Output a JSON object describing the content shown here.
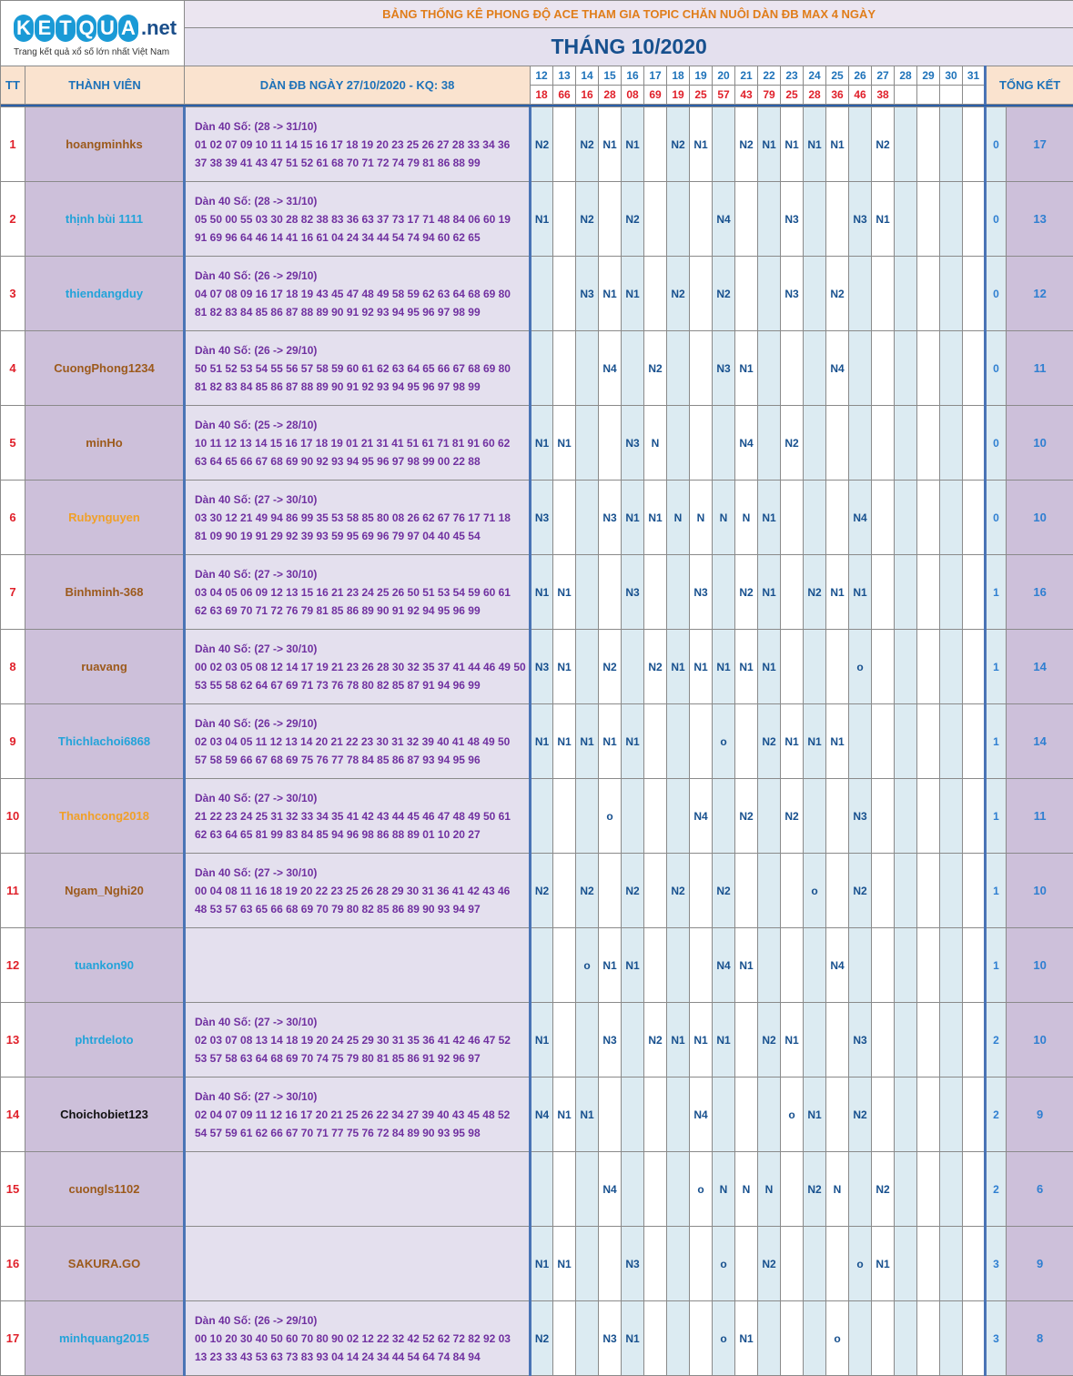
{
  "logo": {
    "letters": [
      "K",
      "E",
      "T",
      "Q",
      "U",
      "A"
    ],
    "suffix": ".net",
    "tagline": "Trang kết quả xổ số lớn nhất Việt Nam"
  },
  "banner": {
    "title": "BẢNG THỐNG KÊ PHONG ĐỘ ACE THAM GIA TOPIC CHĂN NUÔI DÀN ĐB MAX 4 NGÀY",
    "month": "THÁNG 10/2020"
  },
  "headers": {
    "tt": "TT",
    "member": "THÀNH VIÊN",
    "dan": "DÀN ĐB NGÀY 27/10/2020 - KQ: 38",
    "summary": "TỔNG KẾT"
  },
  "days": [
    "12",
    "13",
    "14",
    "15",
    "16",
    "17",
    "18",
    "19",
    "20",
    "21",
    "22",
    "23",
    "24",
    "25",
    "26",
    "27",
    "28",
    "29",
    "30",
    "31"
  ],
  "results": [
    "18",
    "66",
    "16",
    "28",
    "08",
    "69",
    "19",
    "25",
    "57",
    "43",
    "79",
    "25",
    "28",
    "36",
    "46",
    "38",
    "",
    "",
    "",
    ""
  ],
  "colors": {
    "brown": "#9c5a1c",
    "cyan": "#23a3d9",
    "orange": "#f0a028",
    "black": "#111111"
  },
  "rows": [
    {
      "tt": "1",
      "name": "hoangminhks",
      "color": "brown",
      "dan": [
        "Dàn 40 Số: (28 -> 31/10)",
        "01 02 07 09 10 11 14 15 16 17 18 19 20 23 25 26 27 28 33 34 36",
        "37 38 39 41 43 47 51 52 61 68 70 71 72 74 79 81 86 88 99"
      ],
      "cells": [
        "N2",
        "",
        "N2",
        "N1",
        "N1",
        "",
        "N2",
        "N1",
        "",
        "N2",
        "N1",
        "N1",
        "N1",
        "N1",
        "",
        "N2",
        "",
        "",
        "",
        ""
      ],
      "s0": "0",
      "s1": "17"
    },
    {
      "tt": "2",
      "name": "thịnh bùi 1111",
      "color": "cyan",
      "dan": [
        "Dàn 40 Số: (28 -> 31/10)",
        "05 50 00 55 03 30 28 82 38 83 36 63 37 73 17 71 48 84 06 60 19",
        "91 69 96 64 46 14 41 16 61 04 24 34 44 54 74 94 60 62 65"
      ],
      "cells": [
        "N1",
        "",
        "N2",
        "",
        "N2",
        "",
        "",
        "",
        "N4",
        "",
        "",
        "N3",
        "",
        "",
        "N3",
        "N1",
        "",
        "",
        "",
        ""
      ],
      "s0": "0",
      "s1": "13"
    },
    {
      "tt": "3",
      "name": "thiendangduy",
      "color": "cyan",
      "dan": [
        "Dàn 40 Số: (26 -> 29/10)",
        "04 07 08 09 16 17 18 19 43 45 47 48 49 58 59 62 63 64 68 69 80",
        "81 82 83 84 85 86 87 88 89 90 91 92 93 94 95 96 97 98 99"
      ],
      "cells": [
        "",
        "",
        "N3",
        "N1",
        "N1",
        "",
        "N2",
        "",
        "N2",
        "",
        "",
        "N3",
        "",
        "N2",
        "",
        "",
        "",
        "",
        "",
        ""
      ],
      "s0": "0",
      "s1": "12"
    },
    {
      "tt": "4",
      "name": "CuongPhong1234",
      "color": "brown",
      "dan": [
        "Dàn 40 Số: (26 -> 29/10)",
        "50 51 52 53 54 55 56 57 58 59 60 61 62 63 64 65 66 67 68 69 80",
        "81 82 83 84 85 86 87 88 89 90 91 92 93 94 95 96 97 98 99"
      ],
      "cells": [
        "",
        "",
        "",
        "N4",
        "",
        "N2",
        "",
        "",
        "N3",
        "N1",
        "",
        "",
        "",
        "N4",
        "",
        "",
        "",
        "",
        "",
        ""
      ],
      "s0": "0",
      "s1": "11"
    },
    {
      "tt": "5",
      "name": "minHo",
      "color": "brown",
      "dan": [
        "Dàn 40 Số: (25 -> 28/10)",
        "10 11 12 13 14 15 16 17 18 19 01 21 31 41 51 61 71 81 91 60 62",
        "63 64 65 66 67 68 69 90 92 93 94 95 96 97 98 99 00 22 88"
      ],
      "cells": [
        "N1",
        "N1",
        "",
        "",
        "N3",
        "N",
        "",
        "",
        "",
        "N4",
        "",
        "N2",
        "",
        "",
        "",
        "",
        "",
        "",
        "",
        ""
      ],
      "s0": "0",
      "s1": "10"
    },
    {
      "tt": "6",
      "name": "Rubynguyen",
      "color": "orange",
      "dan": [
        "Dàn 40 Số: (27 -> 30/10)",
        "03 30 12 21 49 94 86 99 35 53 58 85 80 08 26 62 67 76 17 71 18",
        "81 09 90 19 91 29 92 39 93 59 95 69 96 79 97 04 40 45 54"
      ],
      "cells": [
        "N3",
        "",
        "",
        "N3",
        "N1",
        "N1",
        "N",
        "N",
        "N",
        "N",
        "N1",
        "",
        "",
        "",
        "N4",
        "",
        "",
        "",
        "",
        ""
      ],
      "s0": "0",
      "s1": "10"
    },
    {
      "tt": "7",
      "name": "Binhminh-368",
      "color": "brown",
      "dan": [
        "Dàn 40 Số: (27 -> 30/10)",
        "03 04 05 06 09 12 13 15 16 21 23 24 25 26 50 51 53 54 59 60 61",
        "62 63 69 70 71 72 76 79 81 85 86 89 90 91 92 94 95 96 99"
      ],
      "cells": [
        "N1",
        "N1",
        "",
        "",
        "N3",
        "",
        "",
        "N3",
        "",
        "N2",
        "N1",
        "",
        "N2",
        "N1",
        "N1",
        "",
        "",
        "",
        "",
        ""
      ],
      "s0": "1",
      "s1": "16"
    },
    {
      "tt": "8",
      "name": "ruavang",
      "color": "brown",
      "dan": [
        "Dàn 40 Số: (27 -> 30/10)",
        "00 02 03 05 08 12 14 17 19 21 23 26 28 30 32 35 37 41 44 46 49 50",
        "53 55 58 62 64 67 69 71 73 76 78 80 82 85 87 91 94 96 99"
      ],
      "cells": [
        "N3",
        "N1",
        "",
        "N2",
        "",
        "N2",
        "N1",
        "N1",
        "N1",
        "N1",
        "N1",
        "",
        "",
        "",
        "o",
        "",
        "",
        "",
        "",
        ""
      ],
      "s0": "1",
      "s1": "14"
    },
    {
      "tt": "9",
      "name": "Thichlachoi6868",
      "color": "cyan",
      "dan": [
        "Dàn 40 Số: (26 -> 29/10)",
        "02 03 04 05 11 12 13 14 20 21 22 23 30 31 32 39 40 41 48 49 50",
        "57 58 59 66 67 68 69 75 76 77 78 84 85 86 87 93 94 95 96"
      ],
      "cells": [
        "N1",
        "N1",
        "N1",
        "N1",
        "N1",
        "",
        "",
        "",
        "o",
        "",
        "N2",
        "N1",
        "N1",
        "N1",
        "",
        "",
        "",
        "",
        "",
        ""
      ],
      "s0": "1",
      "s1": "14"
    },
    {
      "tt": "10",
      "name": "Thanhcong2018",
      "color": "orange",
      "dan": [
        "Dàn 40 Số: (27 -> 30/10)",
        "21 22 23 24 25 31 32 33 34 35 41 42 43 44 45 46 47 48 49 50 61",
        "62 63 64 65 81 99 83 84 85 94 96 98 86 88 89 01 10 20 27"
      ],
      "cells": [
        "",
        "",
        "",
        "o",
        "",
        "",
        "",
        "N4",
        "",
        "N2",
        "",
        "N2",
        "",
        "",
        "N3",
        "",
        "",
        "",
        "",
        ""
      ],
      "s0": "1",
      "s1": "11"
    },
    {
      "tt": "11",
      "name": "Ngam_Nghi20",
      "color": "brown",
      "dan": [
        "Dàn 40 Số: (27 -> 30/10)",
        "00 04 08 11 16 18 19 20 22 23 25 26 28 29 30 31 36 41 42 43 46",
        "48 53 57 63 65 66 68 69 70 79 80 82 85 86 89 90 93 94 97"
      ],
      "cells": [
        "N2",
        "",
        "N2",
        "",
        "N2",
        "",
        "N2",
        "",
        "N2",
        "",
        "",
        "",
        "o",
        "",
        "N2",
        "",
        "",
        "",
        "",
        ""
      ],
      "s0": "1",
      "s1": "10"
    },
    {
      "tt": "12",
      "name": "tuankon90",
      "color": "cyan",
      "dan": [],
      "cells": [
        "",
        "",
        "o",
        "N1",
        "N1",
        "",
        "",
        "",
        "N4",
        "N1",
        "",
        "",
        "",
        "N4",
        "",
        "",
        "",
        "",
        "",
        ""
      ],
      "s0": "1",
      "s1": "10"
    },
    {
      "tt": "13",
      "name": "phtrdeloto",
      "color": "cyan",
      "dan": [
        "Dàn 40 Số: (27 -> 30/10)",
        "02 03 07 08 13 14 18 19 20 24 25 29 30 31 35 36 41 42 46 47 52",
        "53 57 58 63 64 68 69 70 74 75 79 80 81 85 86 91 92 96 97"
      ],
      "cells": [
        "N1",
        "",
        "",
        "N3",
        "",
        "N2",
        "N1",
        "N1",
        "N1",
        "",
        "N2",
        "N1",
        "",
        "",
        "N3",
        "",
        "",
        "",
        "",
        ""
      ],
      "s0": "2",
      "s1": "10"
    },
    {
      "tt": "14",
      "name": "Choichobiet123",
      "color": "black",
      "dan": [
        "Dàn 40 Số: (27 -> 30/10)",
        "02 04 07 09 11 12 16 17 20 21 25 26 22 34 27 39 40 43 45 48 52",
        "54 57 59 61 62 66 67 70 71 77 75 76 72 84 89 90 93 95 98"
      ],
      "cells": [
        "N4",
        "N1",
        "N1",
        "",
        "",
        "",
        "",
        "N4",
        "",
        "",
        "",
        "o",
        "N1",
        "",
        "N2",
        "",
        "",
        "",
        "",
        ""
      ],
      "s0": "2",
      "s1": "9"
    },
    {
      "tt": "15",
      "name": "cuongls1102",
      "color": "brown",
      "dan": [],
      "cells": [
        "",
        "",
        "",
        "N4",
        "",
        "",
        "",
        "o",
        "N",
        "N",
        "N",
        "",
        "N2",
        "N",
        "",
        "N2",
        "",
        "",
        "",
        ""
      ],
      "s0": "2",
      "s1": "6"
    },
    {
      "tt": "16",
      "name": "SAKURA.GO",
      "color": "brown",
      "dan": [],
      "cells": [
        "N1",
        "N1",
        "",
        "",
        "N3",
        "",
        "",
        "",
        "o",
        "",
        "N2",
        "",
        "",
        "",
        "o",
        "N1",
        "",
        "",
        "",
        ""
      ],
      "s0": "3",
      "s1": "9"
    },
    {
      "tt": "17",
      "name": "minhquang2015",
      "color": "cyan",
      "dan": [
        "Dàn 40 Số: (26 -> 29/10)",
        "00 10 20 30 40 50 60 70 80 90 02 12 22 32 42 52 62 72 82 92 03",
        "13 23 33 43 53 63 73 83 93 04 14 24 34 44 54 64 74 84 94"
      ],
      "cells": [
        "N2",
        "",
        "",
        "N3",
        "N1",
        "",
        "",
        "",
        "o",
        "N1",
        "",
        "",
        "",
        "o",
        "",
        "",
        "",
        "",
        "",
        ""
      ],
      "s0": "3",
      "s1": "8"
    }
  ]
}
